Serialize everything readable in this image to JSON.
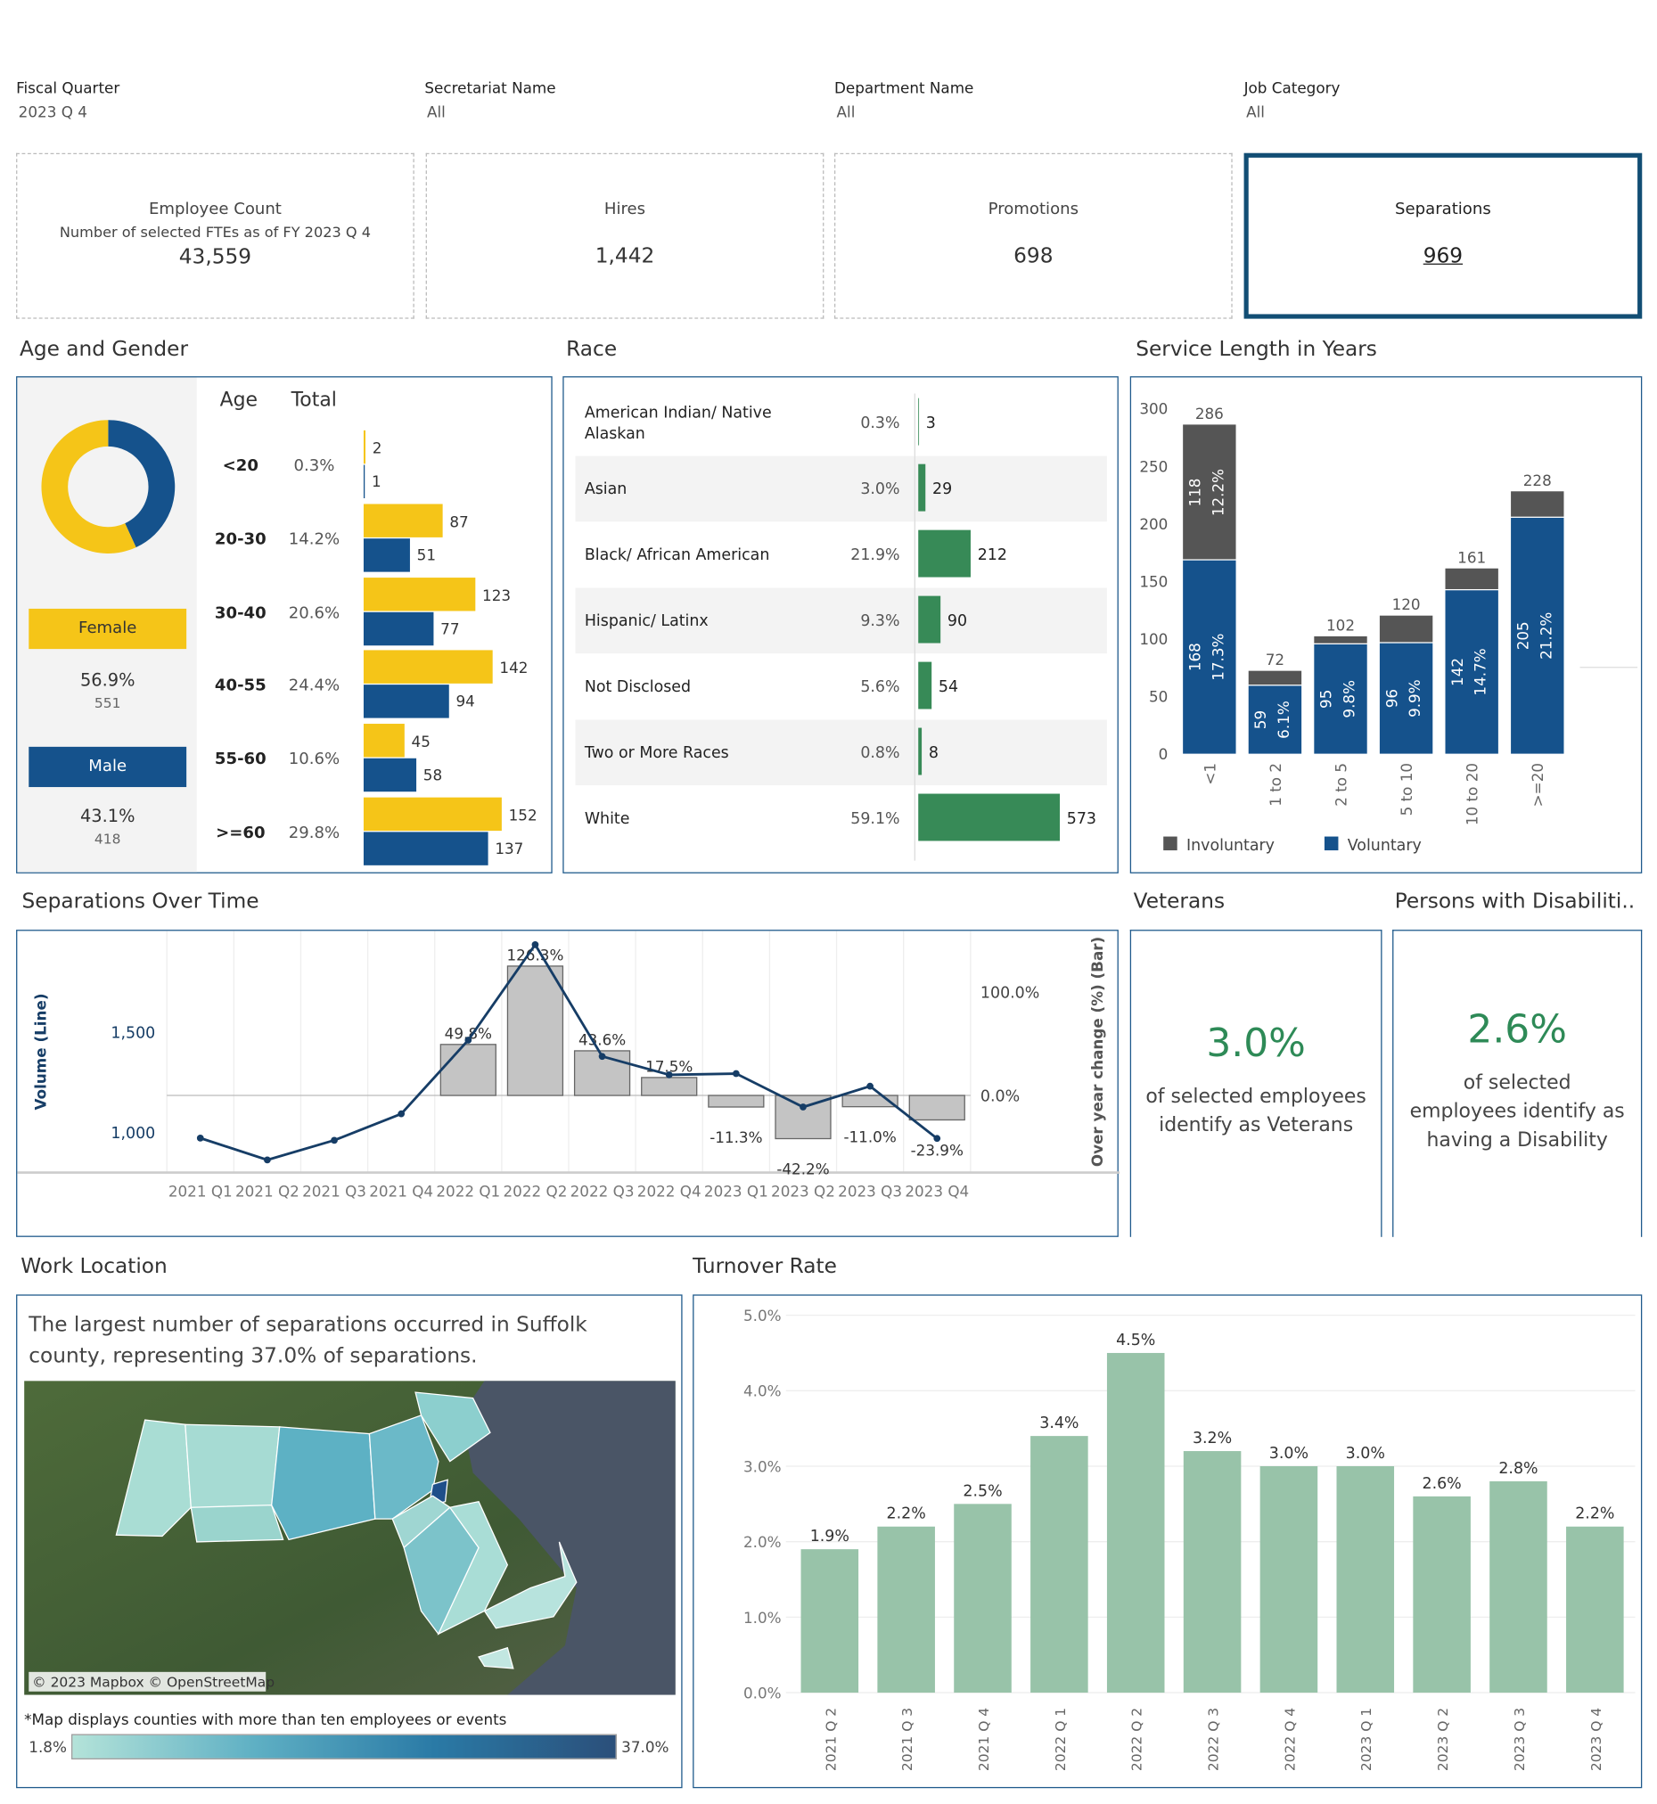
{
  "filters": [
    {
      "label": "Fiscal Quarter",
      "value": "2023 Q 4"
    },
    {
      "label": "Secretariat Name",
      "value": "All"
    },
    {
      "label": "Department Name",
      "value": "All"
    },
    {
      "label": "Job Category",
      "value": "All"
    }
  ],
  "kpis": [
    {
      "title": "Employee Count",
      "subtitle": "Number of selected FTEs as of FY 2023 Q 4",
      "value": "43,559"
    },
    {
      "title": "Hires",
      "value": "1,442"
    },
    {
      "title": "Promotions",
      "value": "698"
    },
    {
      "title": "Separations",
      "value": "969"
    }
  ],
  "age_gender": {
    "title": "Age and Gender",
    "col_age": "Age",
    "col_total": "Total",
    "female": {
      "label": "Female",
      "pct": "56.9%",
      "count": "551",
      "count_num": 551
    },
    "male": {
      "label": "Male",
      "pct": "43.1%",
      "count": "418",
      "count_num": 418
    },
    "rows": [
      {
        "age": "<20",
        "total": "0.3%",
        "female": 2,
        "male": 1
      },
      {
        "age": "20-30",
        "total": "14.2%",
        "female": 87,
        "male": 51
      },
      {
        "age": "30-40",
        "total": "20.6%",
        "female": 123,
        "male": 77
      },
      {
        "age": "40-55",
        "total": "24.4%",
        "female": 142,
        "male": 94
      },
      {
        "age": "55-60",
        "total": "10.6%",
        "female": 45,
        "male": 58
      },
      {
        "age": ">=60",
        "total": "29.8%",
        "female": 152,
        "male": 137
      }
    ],
    "colors": {
      "female": "#f5c518",
      "male": "#15528c"
    }
  },
  "race": {
    "title": "Race",
    "rows": [
      {
        "label": "American Indian/ Native Alaskan",
        "pct": "0.3%",
        "count": 3
      },
      {
        "label": "Asian",
        "pct": "3.0%",
        "count": 29
      },
      {
        "label": "Black/ African American",
        "pct": "21.9%",
        "count": 212
      },
      {
        "label": "Hispanic/ Latinx",
        "pct": "9.3%",
        "count": 90
      },
      {
        "label": "Not Disclosed",
        "pct": "5.6%",
        "count": 54
      },
      {
        "label": "Two or More Races",
        "pct": "0.8%",
        "count": 8
      },
      {
        "label": "White",
        "pct": "59.1%",
        "count": 573
      }
    ],
    "color": "#378a57"
  },
  "service": {
    "title": "Service Length in Years",
    "chart_data": {
      "type": "bar",
      "stacked": true,
      "categories": [
        "<1",
        "1 to 2",
        "2 to 5",
        "5 to 10",
        "10 to 20",
        ">=20"
      ],
      "series": [
        {
          "name": "Voluntary",
          "values": [
            168,
            59,
            95,
            96,
            142,
            205
          ],
          "labels": [
            "17.3%",
            "6.1%",
            "9.8%",
            "9.9%",
            "14.7%",
            "21.2%"
          ],
          "color": "#15528c"
        },
        {
          "name": "Involuntary",
          "values": [
            118,
            13,
            7,
            24,
            19,
            23
          ],
          "labels": [
            "12.2%",
            "",
            "",
            "",
            "",
            ""
          ],
          "color": "#555555"
        }
      ],
      "totals": [
        286,
        72,
        102,
        120,
        161,
        228
      ],
      "ylim": [
        0,
        300
      ],
      "yticks": [
        0,
        50,
        100,
        150,
        200,
        250,
        300
      ]
    },
    "legend": [
      "Involuntary",
      "Voluntary"
    ]
  },
  "sep_time": {
    "title": "Separations Over Time",
    "chart_data": {
      "type": "bar+line",
      "categories": [
        "2021 Q1",
        "2021 Q2",
        "2021 Q3",
        "2021 Q4",
        "2022 Q1",
        "2022 Q2",
        "2022 Q3",
        "2022 Q4",
        "2023 Q1",
        "2023 Q2",
        "2023 Q3",
        "2023 Q4"
      ],
      "line": {
        "name": "Volume (Line)",
        "values": [
          971,
          862,
          960,
          1092,
          1460,
          1937,
          1379,
          1287,
          1293,
          1126,
          1230,
          969
        ]
      },
      "bars": {
        "name": "Over year change (%) (Bar)",
        "values": [
          null,
          null,
          null,
          null,
          49.8,
          126.3,
          43.6,
          17.5,
          -11.3,
          -42.2,
          -11.0,
          -23.9
        ],
        "labels": [
          "",
          "",
          "",
          "",
          "49.8%",
          "126.3%",
          "43.6%",
          "17.5%",
          "-11.3%",
          "-42.2%",
          "-11.0%",
          "-23.9%"
        ]
      },
      "y_left_label": "Volume (Line)",
      "y_left_ticks": [
        "1,000",
        "1,500"
      ],
      "y_right_label": "Over year change (%) (Bar)",
      "y_right_ticks": [
        "0.0%",
        "100.0%"
      ]
    }
  },
  "veterans": {
    "title": "Veterans",
    "value": "3.0%",
    "text": "of selected employees identify as Veterans"
  },
  "disab": {
    "title": "Persons with Disabiliti..",
    "value": "2.6%",
    "text": "of selected employees identify as having a Disability"
  },
  "work": {
    "title": "Work Location",
    "summary": "The largest number of separations occurred in Suffolk county, representing 37.0% of separations.",
    "attribution": "© 2023 Mapbox © OpenStreetMap",
    "note": "*Map displays counties with more than ten employees or events",
    "legend_min": "1.8%",
    "legend_max": "37.0%"
  },
  "turnover": {
    "title": "Turnover Rate",
    "chart_data": {
      "type": "bar",
      "categories": [
        "2021 Q 2",
        "2021 Q 3",
        "2021 Q 4",
        "2022 Q 1",
        "2022 Q 2",
        "2022 Q 3",
        "2022 Q 4",
        "2023 Q 1",
        "2023 Q 2",
        "2023 Q 3",
        "2023 Q 4"
      ],
      "values": [
        1.9,
        2.2,
        2.5,
        3.4,
        4.5,
        3.2,
        3.0,
        3.0,
        2.6,
        2.8,
        2.2
      ],
      "labels": [
        "1.9%",
        "2.2%",
        "2.5%",
        "3.4%",
        "4.5%",
        "3.2%",
        "3.0%",
        "3.0%",
        "2.6%",
        "2.8%",
        "2.2%"
      ],
      "ylim": [
        0,
        5
      ],
      "yticks": [
        "0.0%",
        "1.0%",
        "2.0%",
        "3.0%",
        "4.0%",
        "5.0%"
      ],
      "color": "#98c3a9"
    }
  }
}
